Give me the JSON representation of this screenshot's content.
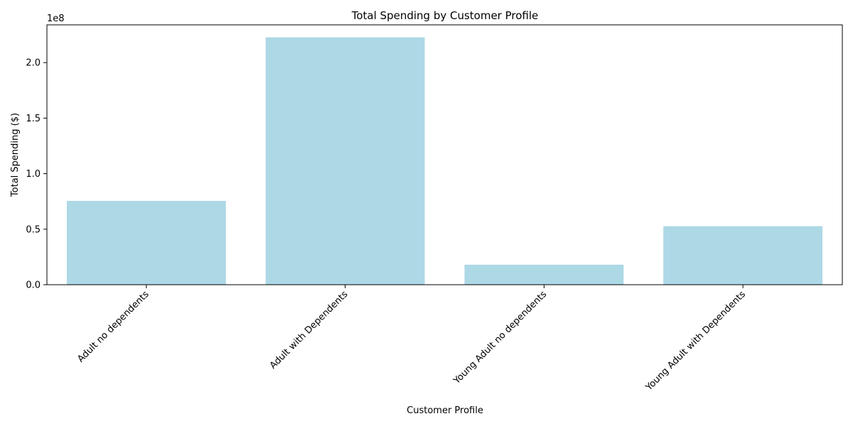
{
  "chart_data": {
    "type": "bar",
    "title": "Total Spending by Customer Profile",
    "xlabel": "Customer Profile",
    "ylabel": "Total Spending ($)",
    "y_multiplier_label": "1e8",
    "categories": [
      "Adult no dependents",
      "Adult with Dependents",
      "Young Adult no dependents",
      "Young Adult with Dependents"
    ],
    "values": [
      75500000,
      222800000,
      18000000,
      52700000
    ],
    "yticks": [
      0,
      50000000,
      100000000,
      150000000,
      200000000
    ],
    "ytick_labels": [
      "0.0",
      "0.5",
      "1.0",
      "1.5",
      "2.0"
    ],
    "ylim": [
      0,
      234000000
    ],
    "bar_color": "#add8e6",
    "grid": false
  }
}
